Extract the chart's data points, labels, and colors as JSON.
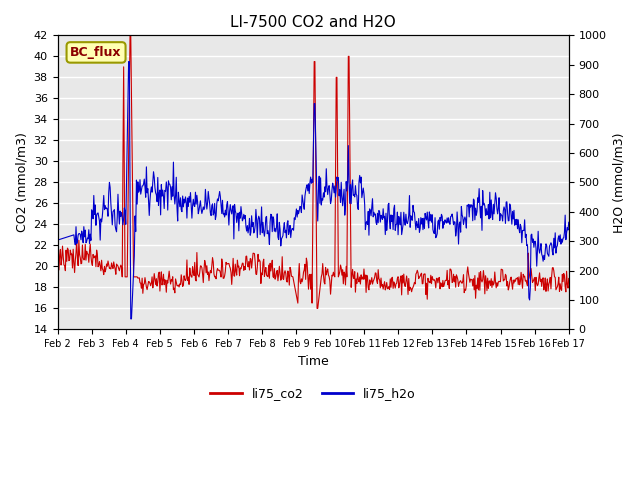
{
  "title": "LI-7500 CO2 and H2O",
  "xlabel": "Time",
  "ylabel_left": "CO2 (mmol/m3)",
  "ylabel_right": "H2O (mmol/m3)",
  "ylim_left": [
    14,
    42
  ],
  "ylim_right": [
    0,
    1000
  ],
  "yticks_left": [
    14,
    16,
    18,
    20,
    22,
    24,
    26,
    28,
    30,
    32,
    34,
    36,
    38,
    40,
    42
  ],
  "yticks_right": [
    0,
    100,
    200,
    300,
    400,
    500,
    600,
    700,
    800,
    900,
    1000
  ],
  "xtick_labels": [
    "Feb 2",
    "Feb 3",
    "Feb 4",
    "Feb 5",
    "Feb 6",
    "Feb 7",
    "Feb 8",
    "Feb 9",
    "Feb 10",
    "Feb 11",
    "Feb 12",
    "Feb 13",
    "Feb 14",
    "Feb 15",
    "Feb 16",
    "Feb 17"
  ],
  "color_co2": "#cc0000",
  "color_h2o": "#0000cc",
  "legend_label_co2": "li75_co2",
  "legend_label_h2o": "li75_h2o",
  "annotation_text": "BC_flux",
  "bg_color": "#e8e8e8",
  "grid_color": "white",
  "title_fontsize": 11,
  "axis_fontsize": 9,
  "tick_fontsize": 8,
  "legend_fontsize": 9
}
